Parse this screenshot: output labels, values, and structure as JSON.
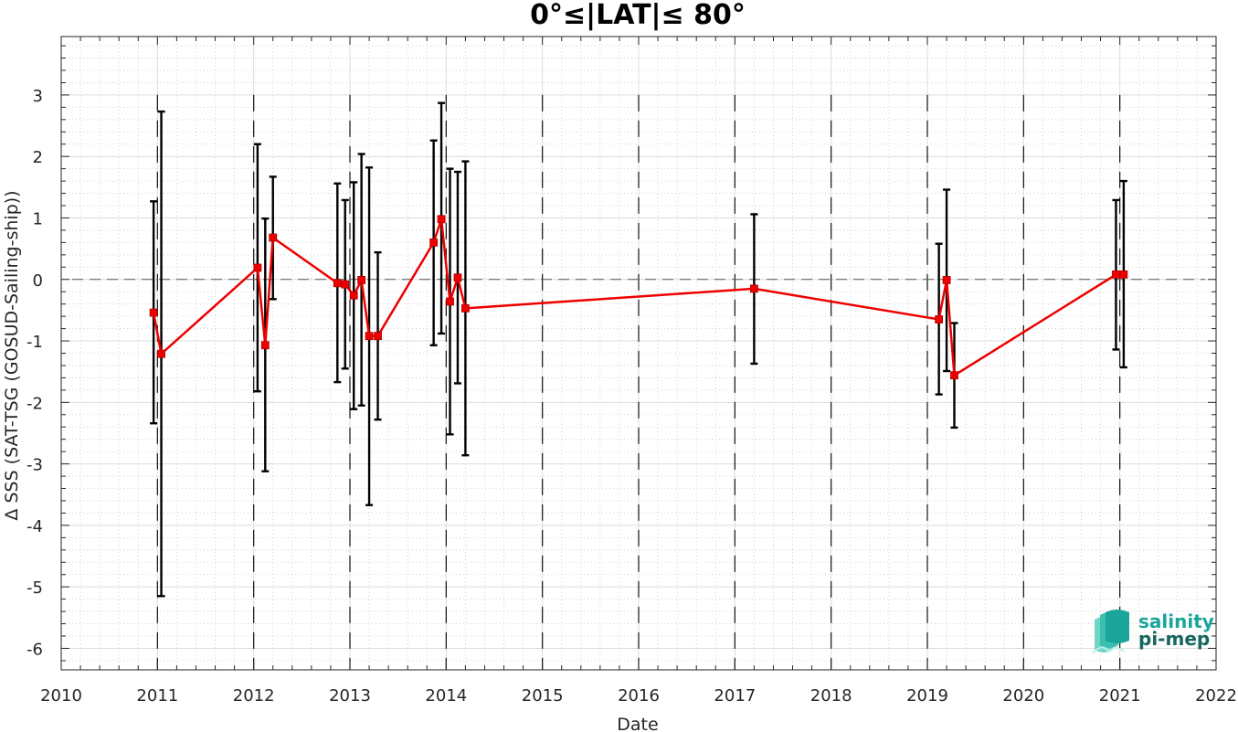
{
  "chart_data": {
    "type": "line",
    "title": "0°≤|LAT|≤ 80°",
    "xlabel": "Date",
    "ylabel": "Δ SSS (SAT-TSG (GOSUD-Sailing-ship))",
    "xlim": [
      2010,
      2022
    ],
    "ylim": [
      -6.35,
      3.95
    ],
    "x_ticks": [
      "2010",
      "2011",
      "2012",
      "2013",
      "2014",
      "2015",
      "2016",
      "2017",
      "2018",
      "2019",
      "2020",
      "2021",
      "2022"
    ],
    "y_ticks": [
      "3",
      "2",
      "1",
      "0",
      "-1",
      "-2",
      "-3",
      "-4",
      "-5",
      "-6"
    ],
    "grid": true,
    "zero_line": true,
    "year_dividers": [
      2011,
      2012,
      2013,
      2014,
      2015,
      2016,
      2017,
      2018,
      2019,
      2020,
      2021
    ],
    "series": [
      {
        "color": "#ee0000",
        "errorbar_color": "#000000",
        "points": [
          {
            "x": 2010.96,
            "y": -0.54,
            "low": -2.34,
            "high": 1.27
          },
          {
            "x": 2011.04,
            "y": -1.21,
            "low": -5.15,
            "high": 2.73
          },
          {
            "x": 2012.04,
            "y": 0.19,
            "low": -1.82,
            "high": 2.2
          },
          {
            "x": 2012.12,
            "y": -1.07,
            "low": -3.12,
            "high": 0.99
          },
          {
            "x": 2012.2,
            "y": 0.68,
            "low": -0.32,
            "high": 1.67
          },
          {
            "x": 2012.87,
            "y": -0.06,
            "low": -1.67,
            "high": 1.56
          },
          {
            "x": 2012.95,
            "y": -0.08,
            "low": -1.45,
            "high": 1.29
          },
          {
            "x": 2013.04,
            "y": -0.26,
            "low": -2.11,
            "high": 1.58
          },
          {
            "x": 2013.12,
            "y": -0.01,
            "low": -2.05,
            "high": 2.04
          },
          {
            "x": 2013.2,
            "y": -0.92,
            "low": -3.67,
            "high": 1.82
          },
          {
            "x": 2013.29,
            "y": -0.92,
            "low": -2.28,
            "high": 0.44
          },
          {
            "x": 2013.87,
            "y": 0.6,
            "low": -1.07,
            "high": 2.26
          },
          {
            "x": 2013.95,
            "y": 0.98,
            "low": -0.88,
            "high": 2.87
          },
          {
            "x": 2014.04,
            "y": -0.36,
            "low": -2.52,
            "high": 1.8
          },
          {
            "x": 2014.12,
            "y": 0.03,
            "low": -1.69,
            "high": 1.75
          },
          {
            "x": 2014.2,
            "y": -0.47,
            "low": -2.86,
            "high": 1.92
          },
          {
            "x": 2017.2,
            "y": -0.15,
            "low": -1.37,
            "high": 1.06
          },
          {
            "x": 2019.12,
            "y": -0.65,
            "low": -1.87,
            "high": 0.58
          },
          {
            "x": 2019.2,
            "y": -0.01,
            "low": -1.49,
            "high": 1.46
          },
          {
            "x": 2019.28,
            "y": -1.56,
            "low": -2.41,
            "high": -0.71
          },
          {
            "x": 2020.96,
            "y": 0.08,
            "low": -1.14,
            "high": 1.29
          },
          {
            "x": 2021.04,
            "y": 0.08,
            "low": -1.43,
            "high": 1.6
          }
        ]
      }
    ]
  },
  "logo": {
    "line1": "salinity",
    "line2": "pi-mep",
    "color1": "#1aa59a",
    "color2": "#17675f"
  }
}
